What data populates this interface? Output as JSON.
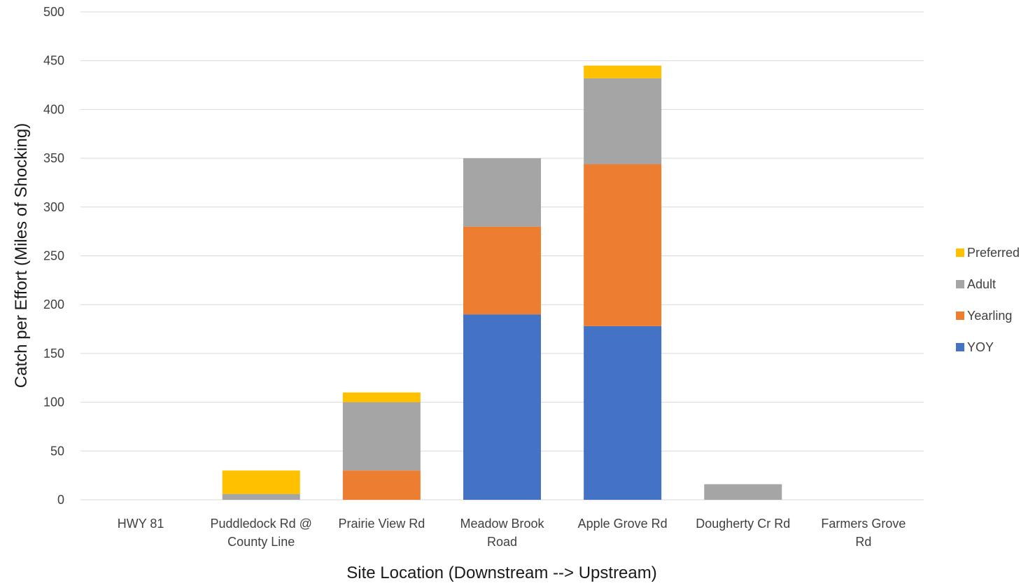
{
  "chart_data": {
    "type": "bar",
    "stacked": true,
    "title": "",
    "xlabel": "Site Location (Downstream --> Upstream)",
    "ylabel": "Catch per Effort (Miles of Shocking)",
    "ylim": [
      0,
      500
    ],
    "yticks": [
      0,
      50,
      100,
      150,
      200,
      250,
      300,
      350,
      400,
      450,
      500
    ],
    "grid": true,
    "legend_position": "right",
    "categories": [
      [
        "HWY 81"
      ],
      [
        "Puddledock Rd @",
        "County Line"
      ],
      [
        "Prairie View Rd"
      ],
      [
        "Meadow Brook",
        "Road"
      ],
      [
        "Apple Grove Rd"
      ],
      [
        "Dougherty Cr Rd"
      ],
      [
        "Farmers Grove",
        "Rd"
      ]
    ],
    "series": [
      {
        "name": "YOY",
        "color": "#4472C4",
        "values": [
          0,
          0,
          0,
          190,
          178,
          0,
          0
        ]
      },
      {
        "name": "Yearling",
        "color": "#ED7D31",
        "values": [
          0,
          0,
          30,
          90,
          166,
          0,
          0
        ]
      },
      {
        "name": "Adult",
        "color": "#A5A5A5",
        "values": [
          0,
          6,
          70,
          70,
          88,
          16,
          0
        ]
      },
      {
        "name": "Preferred",
        "color": "#FFC000",
        "values": [
          0,
          24,
          10,
          0,
          13,
          0,
          0
        ]
      }
    ],
    "legend_order": [
      "Preferred",
      "Adult",
      "Yearling",
      "YOY"
    ]
  }
}
